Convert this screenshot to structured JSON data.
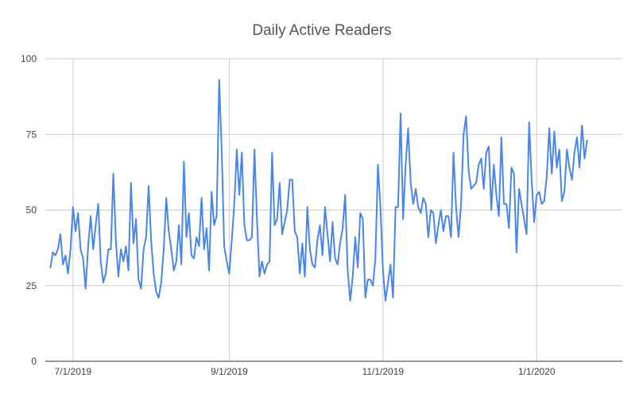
{
  "chart_data": {
    "type": "line",
    "title": "Daily Active Readers",
    "xlabel": "",
    "ylabel": "",
    "x_start": "2019-06-22",
    "x_end": "2020-02-04",
    "xlim": [
      "2019-06-20",
      "2020-02-04"
    ],
    "ylim": [
      0,
      100
    ],
    "yticks": [
      0,
      25,
      50,
      75,
      100
    ],
    "ytick_labels": [
      "0",
      "25",
      "50",
      "75",
      "100"
    ],
    "xticks": [
      "2019-07-01",
      "2019-09-01",
      "2019-11-01",
      "2020-01-01"
    ],
    "xtick_labels": [
      "7/1/2019",
      "9/1/2019",
      "11/1/2019",
      "1/1/2020"
    ],
    "grid": true,
    "legend": "none",
    "series": [
      {
        "color": "#4a86e8",
        "values": [
          31,
          36,
          35,
          37,
          42,
          32,
          35,
          29,
          37,
          51,
          43,
          49,
          37,
          34,
          24,
          38,
          48,
          37,
          45,
          52,
          33,
          26,
          29,
          37,
          37,
          62,
          40,
          28,
          37,
          33,
          38,
          30,
          59,
          39,
          47,
          27,
          24,
          37,
          41,
          58,
          40,
          29,
          23,
          21,
          26,
          37,
          54,
          43,
          37,
          30,
          33,
          45,
          32,
          66,
          41,
          49,
          35,
          34,
          41,
          38,
          54,
          37,
          44,
          30,
          56,
          45,
          48,
          93,
          70,
          38,
          33,
          29,
          40,
          52,
          70,
          55,
          69,
          45,
          40,
          40,
          41,
          70,
          47,
          28,
          33,
          29,
          32,
          33,
          69,
          45,
          47,
          59,
          42,
          46,
          50,
          60,
          60,
          43,
          41,
          29,
          39,
          28,
          51,
          37,
          32,
          31,
          40,
          45,
          35,
          51,
          42,
          33,
          46,
          34,
          32,
          39,
          44,
          55,
          30,
          20,
          28,
          41,
          31,
          49,
          47,
          21,
          27,
          27,
          25,
          34,
          65,
          51,
          30,
          20,
          26,
          32,
          21,
          51,
          51,
          82,
          47,
          65,
          77,
          59,
          52,
          57,
          51,
          49,
          54,
          52,
          41,
          50,
          49,
          39,
          45,
          50,
          43,
          48,
          48,
          41,
          69,
          51,
          41,
          52,
          75,
          81,
          63,
          57,
          58,
          59,
          65,
          67,
          57,
          69,
          71,
          50,
          65,
          55,
          48,
          74,
          52,
          52,
          44,
          64,
          62,
          36,
          57,
          52,
          47,
          42,
          79,
          60,
          46,
          55,
          56,
          52,
          53,
          61,
          77,
          62,
          76,
          64,
          70,
          53,
          56,
          70,
          64,
          60,
          69,
          74,
          64,
          78,
          67,
          73
        ]
      }
    ]
  }
}
